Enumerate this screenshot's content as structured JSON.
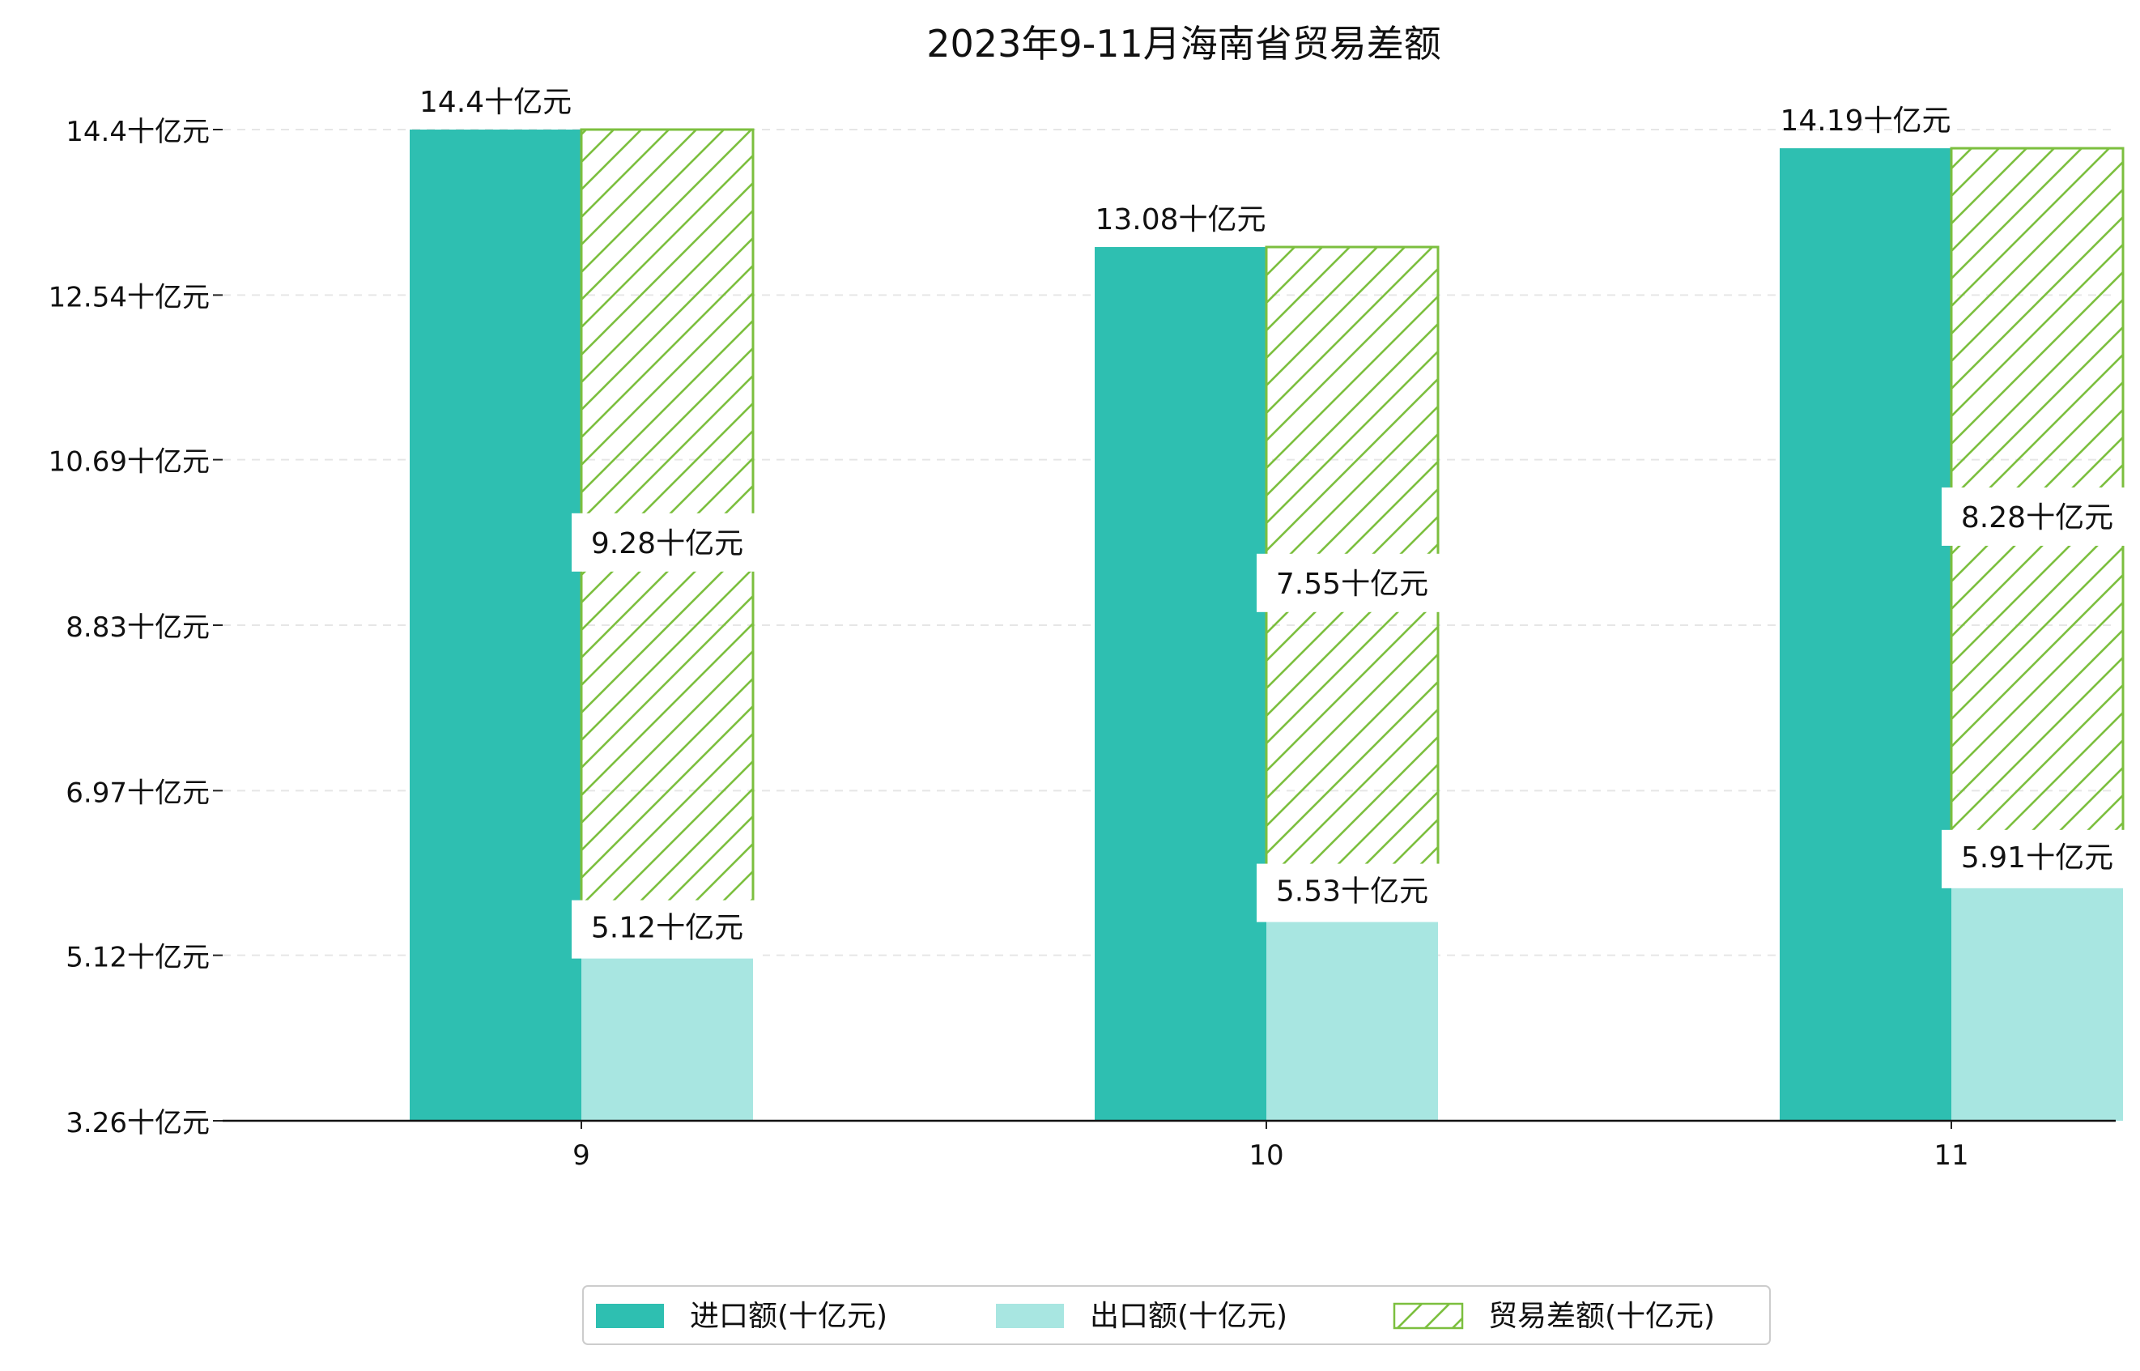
{
  "chart_data": {
    "type": "bar",
    "title": "2023年9-11月海南省贸易差额",
    "xlabel": "",
    "ylabel": "",
    "categories": [
      "9",
      "10",
      "11"
    ],
    "series": [
      {
        "name": "进口额(十亿元)",
        "values": [
          14.4,
          13.08,
          14.19
        ],
        "color": "#2ebfb1",
        "style": "solid"
      },
      {
        "name": "出口额(十亿元)",
        "values": [
          5.12,
          5.53,
          5.91
        ],
        "color": "#a8e6e1",
        "style": "solid"
      },
      {
        "name": "贸易差额(十亿元)",
        "values": [
          9.28,
          7.55,
          8.28
        ],
        "color": "#7cbf3f",
        "style": "hatched",
        "stacked_on": "出口额(十亿元)"
      }
    ],
    "bar_labels": {
      "imports": [
        "14.4十亿元",
        "13.08十亿元",
        "14.19十亿元"
      ],
      "exports": [
        "5.12十亿元",
        "5.53十亿元",
        "5.91十亿元"
      ],
      "balance": [
        "9.28十亿元",
        "7.55十亿元",
        "8.28十亿元"
      ]
    },
    "yticks": [
      3.26,
      5.12,
      6.97,
      8.83,
      10.69,
      12.54,
      14.4
    ],
    "ytick_labels": [
      "3.26十亿元",
      "5.12十亿元",
      "6.97十亿元",
      "8.83十亿元",
      "10.69十亿元",
      "12.54十亿元",
      "14.4十亿元"
    ],
    "ylim": [
      3.26,
      14.4
    ],
    "grid": "horizontal dashed",
    "legend_position": "bottom-center"
  }
}
